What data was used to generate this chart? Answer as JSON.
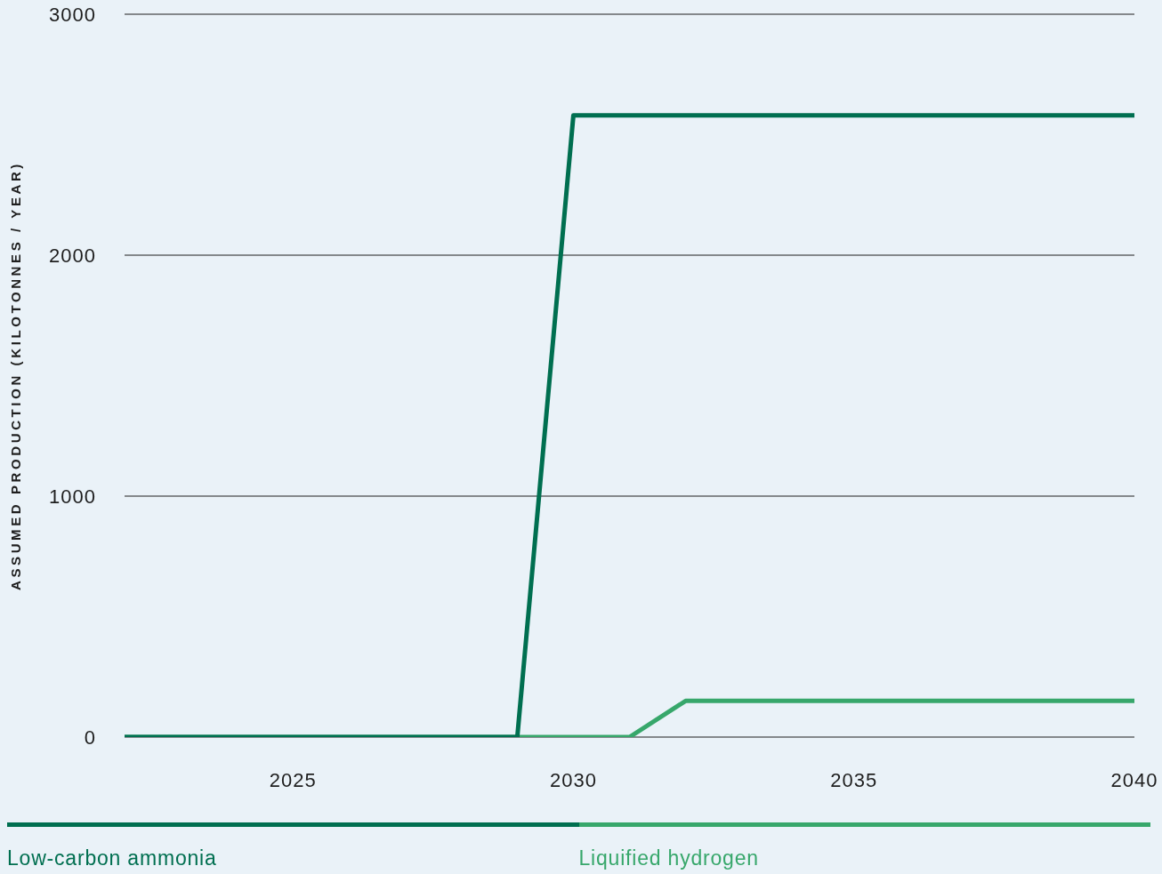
{
  "chart_data": {
    "type": "line",
    "ylabel": "ASSUMED PRODUCTION (KILOTONNES / YEAR)",
    "x": [
      2022,
      2023,
      2024,
      2025,
      2026,
      2027,
      2028,
      2029,
      2030,
      2031,
      2032,
      2033,
      2034,
      2035,
      2036,
      2037,
      2038,
      2039,
      2040
    ],
    "series": [
      {
        "name": "Low-carbon ammonia",
        "color": "#006f50",
        "values": [
          0,
          0,
          0,
          0,
          0,
          0,
          0,
          0,
          2580,
          2580,
          2580,
          2580,
          2580,
          2580,
          2580,
          2580,
          2580,
          2580,
          2580
        ]
      },
      {
        "name": "Liquified hydrogen",
        "color": "#37a76b",
        "values": [
          0,
          0,
          0,
          0,
          0,
          0,
          0,
          0,
          0,
          0,
          150,
          150,
          150,
          150,
          150,
          150,
          150,
          150,
          150
        ]
      }
    ],
    "xlim": [
      2022,
      2040
    ],
    "xticks": [
      2025,
      2030,
      2035,
      2040
    ],
    "ylim": [
      0,
      3000
    ],
    "yticks": [
      0,
      1000,
      2000,
      3000
    ],
    "grid": "y",
    "legend": "bottom"
  }
}
